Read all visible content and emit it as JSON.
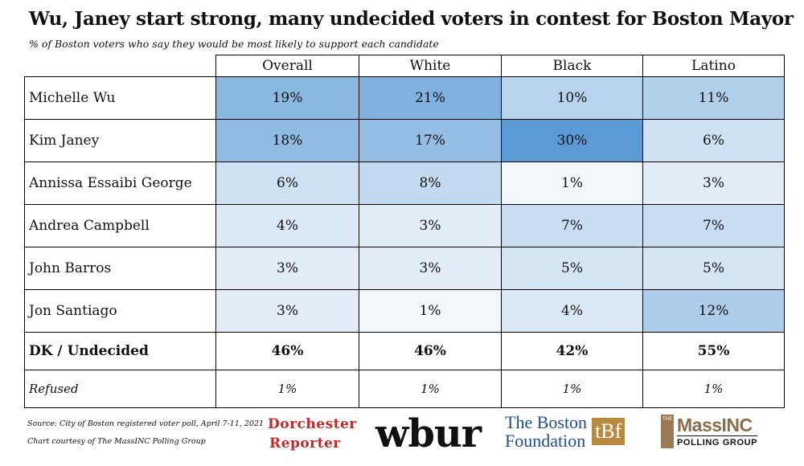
{
  "title": "Wu, Janey start strong, many undecided voters in contest for Boston Mayor",
  "subtitle": "% of Boston voters who say they would be most likely to support each candidate",
  "chart_data": {
    "type": "table",
    "columns": [
      "Overall",
      "White",
      "Black",
      "Latino"
    ],
    "rows": [
      {
        "label": "Michelle Wu",
        "values": [
          "19%",
          "21%",
          "10%",
          "11%"
        ],
        "style": "normal"
      },
      {
        "label": "Kim Janey",
        "values": [
          "18%",
          "17%",
          "30%",
          "6%"
        ],
        "style": "normal"
      },
      {
        "label": "Annissa Essaibi George",
        "values": [
          "6%",
          "8%",
          "1%",
          "3%"
        ],
        "style": "normal"
      },
      {
        "label": "Andrea Campbell",
        "values": [
          "4%",
          "3%",
          "7%",
          "7%"
        ],
        "style": "normal"
      },
      {
        "label": "John Barros",
        "values": [
          "3%",
          "3%",
          "5%",
          "5%"
        ],
        "style": "normal"
      },
      {
        "label": "Jon Santiago",
        "values": [
          "3%",
          "1%",
          "4%",
          "12%"
        ],
        "style": "normal"
      },
      {
        "label": "DK / Undecided",
        "values": [
          "46%",
          "46%",
          "42%",
          "55%"
        ],
        "style": "bold"
      },
      {
        "label": "Refused",
        "values": [
          "1%",
          "1%",
          "1%",
          "1%"
        ],
        "style": "italic"
      }
    ],
    "heatmap_rows": 6,
    "heatmap_color": "#5b9bd5"
  },
  "footer": {
    "source": "Source: City of Boston registered voter poll, April 7-11, 2021",
    "courtesy": "Chart courtesy of The MassINC Polling Group"
  },
  "logos": {
    "dorchester_line1": "Dorchester",
    "dorchester_line2": "Reporter",
    "wbur": "wbur",
    "tbf_line1": "The Boston",
    "tbf_line2": "Foundation",
    "tbf_mark": "tBf",
    "massinc_the": "THE",
    "massinc_name": "MassINC",
    "massinc_sub": "POLLING GROUP"
  }
}
